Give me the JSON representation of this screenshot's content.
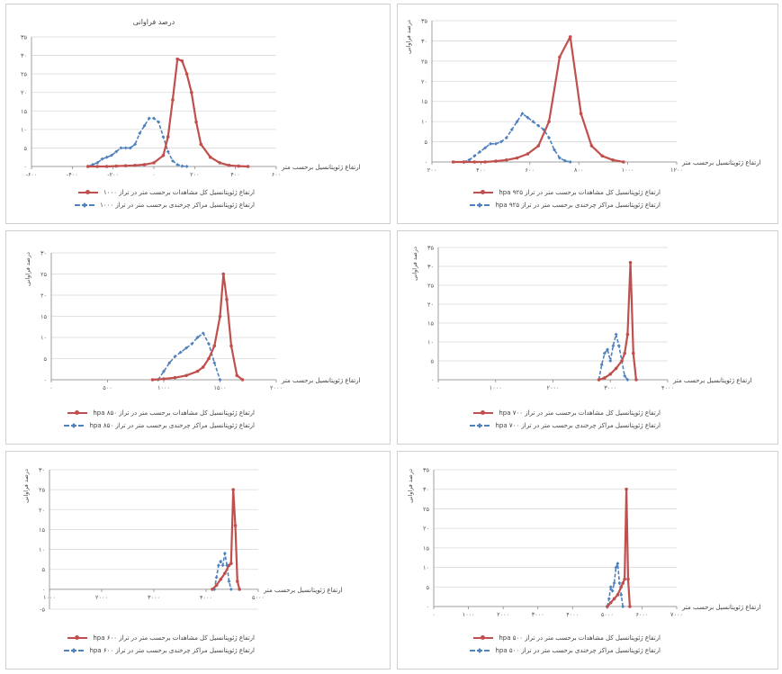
{
  "page": {
    "panels": [
      {
        "level": "۱۰۰۰"
      },
      {
        "level": "hpa ۹۲۵"
      },
      {
        "level": "hpa ۸۵۰"
      },
      {
        "level": "hpa ۷۰۰"
      },
      {
        "level": "hpa ۶۰۰"
      },
      {
        "level": "hpa ۵۰۰"
      }
    ]
  },
  "chart_data": [
    {
      "type": "line",
      "title": "درصد فراوانی",
      "xlabel": "ارتفاع ژئوپتانسیل برحسب متر",
      "ylabel": "",
      "x_ticks": [
        "-۶۰۰",
        "-۴۰۰",
        "-۲۰۰",
        "۰",
        "۲۰۰",
        "۴۰۰",
        "۶۰۰"
      ],
      "y_ticks": [
        "۰",
        "۵",
        "۱۰",
        "۱۵",
        "۲۰",
        "۲۵",
        "۳۰",
        "۳۵"
      ],
      "xlim": [
        -700,
        600
      ],
      "ylim": [
        0,
        35
      ],
      "series": [
        {
          "name": "ارتفاع ژئوپتانسیل کل مشاهدات برحسب متر در تراز ۱۰۰۰",
          "color": "#c0504d",
          "x": [
            -400,
            -350,
            -300,
            -250,
            -200,
            -150,
            -100,
            -50,
            0,
            25,
            50,
            75,
            100,
            125,
            150,
            175,
            200,
            250,
            300,
            350,
            400,
            450
          ],
          "y": [
            0,
            0,
            0,
            0.1,
            0.2,
            0.3,
            0.5,
            1,
            3,
            8,
            18,
            29,
            28.5,
            25,
            20,
            12,
            6,
            2.5,
            1,
            0.3,
            0.1,
            0
          ]
        },
        {
          "name": "ارتفاع ژئوپتانسیل مراکز چرخندی برحسب متر در تراز ۱۰۰۰",
          "color": "#4f81bd",
          "x": [
            -400,
            -375,
            -350,
            -325,
            -300,
            -275,
            -250,
            -225,
            -200,
            -175,
            -150,
            -125,
            -100,
            -75,
            -50,
            -25,
            0,
            25,
            50,
            75,
            100,
            125
          ],
          "y": [
            0,
            0.5,
            1,
            2,
            2.5,
            3,
            4,
            5,
            5,
            5,
            6,
            9,
            11,
            13,
            13,
            12,
            8,
            4,
            1.5,
            0.5,
            0.1,
            0
          ]
        }
      ]
    },
    {
      "type": "line",
      "title": "",
      "xlabel": "ارتفاع ژئوپتانسیل برحسب متر",
      "ylabel": "درصد فراوانی",
      "x_ticks": [
        "۲۰۰",
        "۴۰۰",
        "۶۰۰",
        "۸۰۰",
        "۱۰۰۰",
        "۱۲۰۰"
      ],
      "y_ticks": [
        "۰",
        "۵",
        "۱۰",
        "۱۵",
        "۲۰",
        "۲۵",
        "۳۰",
        "۳۵"
      ],
      "xlim": [
        100,
        1250
      ],
      "ylim": [
        0,
        35
      ],
      "series": [
        {
          "name": "ارتفاع ژئوپتانسیل کل مشاهدات برحسب متر در تراز hpa ۹۲۵",
          "color": "#c0504d",
          "x": [
            200,
            250,
            300,
            350,
            400,
            450,
            500,
            550,
            600,
            650,
            700,
            750,
            800,
            850,
            900,
            950,
            1000
          ],
          "y": [
            0,
            0,
            0,
            0,
            0.2,
            0.5,
            1,
            2,
            4,
            10,
            26,
            31,
            12,
            4,
            1.5,
            0.5,
            0
          ]
        },
        {
          "name": "ارتفاع ژئوپتانسیل مراکز چرخندی برحسب متر در تراز hpa ۹۲۵",
          "color": "#4f81bd",
          "x": [
            250,
            275,
            300,
            325,
            350,
            375,
            400,
            425,
            450,
            475,
            500,
            525,
            550,
            575,
            600,
            625,
            650,
            675,
            700,
            725,
            750
          ],
          "y": [
            0,
            0.5,
            1.5,
            2.5,
            3.5,
            4.5,
            4.5,
            5,
            6,
            8,
            10,
            12,
            11,
            10,
            9,
            8,
            6,
            3,
            1,
            0.3,
            0
          ]
        }
      ]
    },
    {
      "type": "line",
      "title": "",
      "xlabel": "ارتفاع ژئوپتانسیل برحسب متر",
      "ylabel": "درصد فراوانی",
      "x_ticks": [
        "۰",
        "۵۰۰",
        "۱۰۰۰",
        "۱۵۰۰",
        "۲۰۰۰"
      ],
      "y_ticks": [
        "۰",
        "۵",
        "۱۰",
        "۱۵",
        "۲۰",
        "۲۵",
        "۳۰"
      ],
      "xlim": [
        0,
        2000
      ],
      "ylim": [
        0,
        30
      ],
      "series": [
        {
          "name": "ارتفاع ژئوپتانسیل کل مشاهدات برحسب متر در تراز hpa ۸۵۰",
          "color": "#c0504d",
          "x": [
            900,
            1000,
            1100,
            1200,
            1300,
            1350,
            1400,
            1450,
            1500,
            1530,
            1560,
            1600,
            1650,
            1700
          ],
          "y": [
            0,
            0.2,
            0.5,
            1,
            2,
            3,
            5,
            8,
            15,
            25,
            19,
            8,
            1,
            0
          ]
        },
        {
          "name": "ارتفاع ژئوپتانسیل مراکز چرخندی برحسب متر در تراز hpa ۸۵۰",
          "color": "#4f81bd",
          "x": [
            950,
            1000,
            1050,
            1100,
            1150,
            1200,
            1250,
            1300,
            1350,
            1400,
            1450,
            1500
          ],
          "y": [
            0,
            2,
            4,
            5.5,
            6.5,
            7.5,
            8.5,
            10,
            11,
            8.5,
            4,
            0
          ]
        }
      ]
    },
    {
      "type": "line",
      "title": "",
      "xlabel": "ارتفاع ژئوپتانسیل برحسب متر",
      "ylabel": "درصد فراوانی",
      "x_ticks": [
        "۰",
        "۱۰۰۰",
        "۲۰۰۰",
        "۳۰۰۰",
        "۴۰۰۰"
      ],
      "y_ticks": [
        "۰",
        "۵",
        "۱۰",
        "۱۵",
        "۲۰",
        "۲۵",
        "۳۰",
        "۳۵"
      ],
      "xlim": [
        0,
        4000
      ],
      "ylim": [
        0,
        35
      ],
      "series": [
        {
          "name": "ارتفاع ژئوپتانسیل کل مشاهدات برحسب متر در تراز hpa ۷۰۰",
          "color": "#c0504d",
          "x": [
            2800,
            2900,
            3000,
            3100,
            3200,
            3250,
            3300,
            3350,
            3400,
            3450
          ],
          "y": [
            0,
            0.5,
            1.5,
            3,
            5,
            7,
            12,
            31,
            7,
            0
          ]
        },
        {
          "name": "ارتفاع ژئوپتانسیل مراکز چرخندی برحسب متر در تراز hpa ۷۰۰",
          "color": "#4f81bd",
          "x": [
            2800,
            2850,
            2900,
            2950,
            3000,
            3050,
            3100,
            3150,
            3200,
            3250,
            3300
          ],
          "y": [
            0,
            4,
            7,
            8,
            5,
            9,
            12,
            9,
            5,
            1,
            0
          ]
        }
      ]
    },
    {
      "type": "line",
      "title": "",
      "xlabel": "ارتفاع ژئوپتانسیل برحسب متر",
      "ylabel": "درصد فراوانی",
      "x_ticks": [
        "۱۰۰۰",
        "۲۰۰۰",
        "۳۰۰۰",
        "۴۰۰۰",
        "۵۰۰۰"
      ],
      "y_ticks": [
        "-۵",
        "۰",
        "۵",
        "۱۰",
        "۱۵",
        "۲۰",
        "۲۵",
        "۳۰"
      ],
      "xlim": [
        0,
        5000
      ],
      "ylim": [
        -5,
        30
      ],
      "series": [
        {
          "name": "ارتفاع ژئوپتانسیل کل مشاهدات برحسب متر در تراز hpa ۶۰۰",
          "color": "#c0504d",
          "x": [
            3900,
            4000,
            4100,
            4200,
            4300,
            4350,
            4400,
            4450,
            4500,
            4550
          ],
          "y": [
            0,
            1,
            2.5,
            4,
            6,
            6.5,
            25,
            16,
            2,
            0
          ]
        },
        {
          "name": "ارتفاع ژئوپتانسیل مراکز چرخندی برحسب متر در تراز hpa ۶۰۰",
          "color": "#4f81bd",
          "x": [
            3950,
            4000,
            4050,
            4100,
            4150,
            4200,
            4250,
            4300,
            4350
          ],
          "y": [
            0,
            3,
            6,
            7,
            6,
            9,
            6,
            2,
            0
          ]
        }
      ]
    },
    {
      "type": "line",
      "title": "",
      "xlabel": "ارتفاع ژئوپتانسیل برحسب متر",
      "ylabel": "درصد فراوانی",
      "x_ticks": [
        "۰",
        "۱۰۰۰",
        "۲۰۰۰",
        "۳۰۰۰",
        "۴۰۰۰",
        "۵۰۰۰",
        "۶۰۰۰",
        "۷۰۰۰"
      ],
      "y_ticks": [
        "۰",
        "۵",
        "۱۰",
        "۱۵",
        "۲۰",
        "۲۵",
        "۳۰",
        "۳۵"
      ],
      "xlim": [
        0,
        7000
      ],
      "ylim": [
        0,
        35
      ],
      "series": [
        {
          "name": "ارتفاع ژئوپتانسیل کل مشاهدات برحسب متر در تراز hpa ۵۰۰",
          "color": "#c0504d",
          "x": [
            5000,
            5100,
            5200,
            5300,
            5400,
            5450,
            5500,
            5550,
            5600,
            5650
          ],
          "y": [
            0,
            1,
            2,
            3,
            5,
            6,
            7,
            30,
            7,
            0
          ]
        },
        {
          "name": "ارتفاع ژئوپتانسیل مراکز چرخندی برحسب متر در تراز hpa ۵۰۰",
          "color": "#4f81bd",
          "x": [
            5000,
            5050,
            5100,
            5150,
            5200,
            5250,
            5300,
            5350,
            5400,
            5450
          ],
          "y": [
            0,
            2,
            5,
            4,
            6,
            10,
            11,
            6,
            3,
            0
          ]
        }
      ]
    }
  ]
}
